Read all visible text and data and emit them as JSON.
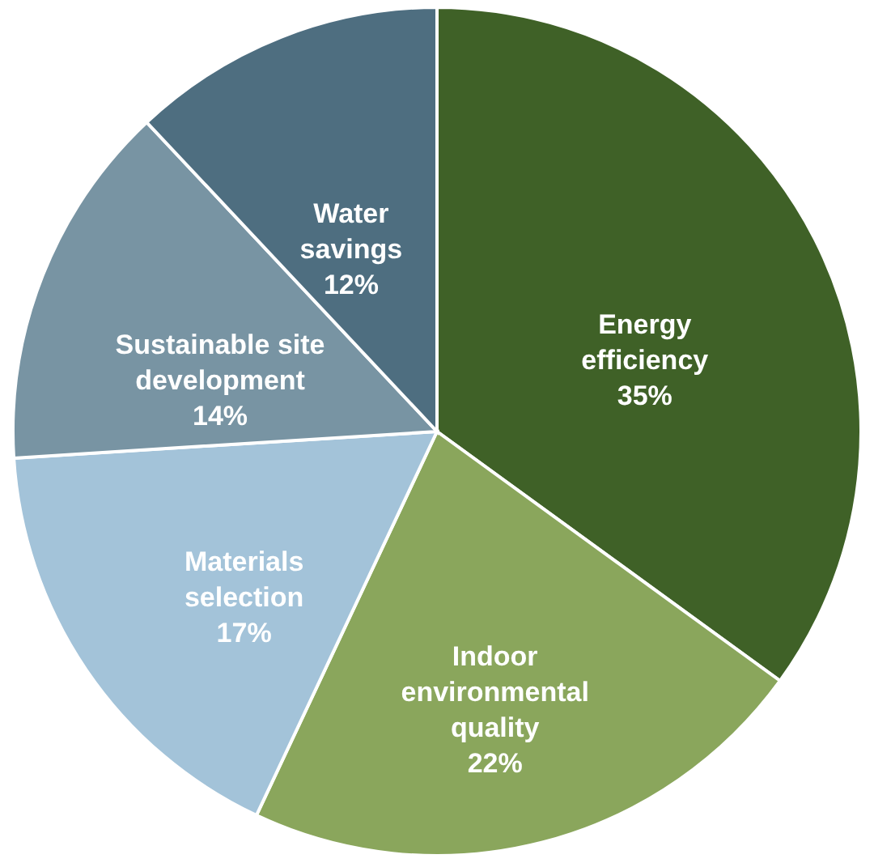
{
  "chart_data": {
    "type": "pie",
    "categories": [
      "Energy\nefficiency",
      "Indoor\nenvironmental\nquality",
      "Materials\nselection",
      "Sustainable site\ndevelopment",
      "Water\nsavings"
    ],
    "values": [
      35,
      22,
      17,
      14,
      12
    ],
    "value_labels": [
      "35%",
      "22%",
      "17%",
      "14%",
      "12%"
    ],
    "colors": [
      "#3f6127",
      "#8aa65c",
      "#a3c3d9",
      "#7894a3",
      "#4e6e80"
    ]
  }
}
